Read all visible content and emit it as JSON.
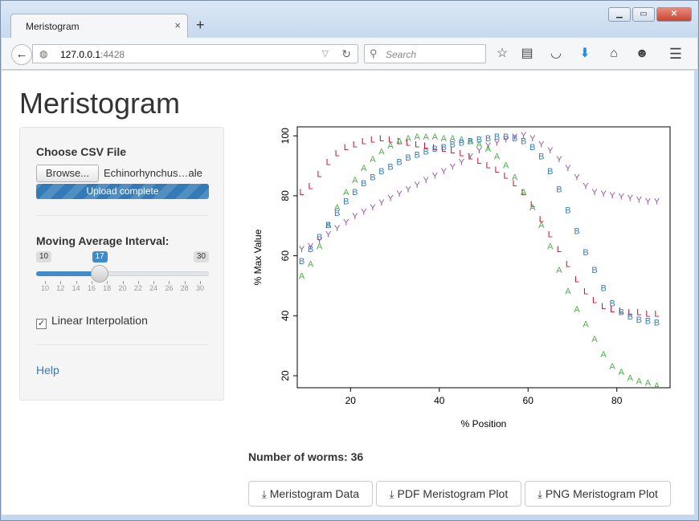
{
  "browser": {
    "tab_title": "Meristogram",
    "tab_close": "×",
    "new_tab": "+",
    "url_host": "127.0.0.1",
    "url_port": ":4428",
    "search_placeholder": "Search"
  },
  "page": {
    "title": "Meristogram",
    "file_input": {
      "label": "Choose CSV File",
      "browse_label": "Browse...",
      "file_name": "Echinorhynchus…ale",
      "progress_text": "Upload complete",
      "progress_fraction": 1.0
    },
    "slider": {
      "label": "Moving Average Interval:",
      "min": 10,
      "max": 30,
      "value": 17,
      "min_label": "10",
      "max_label": "30",
      "value_label": "17",
      "tick_labels": [
        "10",
        "12",
        "14",
        "16",
        "18",
        "20",
        "22",
        "24",
        "26",
        "28",
        "30"
      ]
    },
    "linear_interpolation": {
      "label": "Linear Interpolation",
      "checked": true,
      "mark": "✓"
    },
    "help_label": "Help",
    "worm_count_label": "Number of worms: 36",
    "downloads": [
      {
        "label": "Meristogram Data",
        "icon": "download-icon"
      },
      {
        "label": "PDF Meristogram Plot",
        "icon": "download-icon"
      },
      {
        "label": "PNG Meristogram Plot",
        "icon": "download-icon"
      }
    ]
  },
  "chart_data": {
    "type": "scatter",
    "xlabel": "% Position",
    "ylabel": "% Max Value",
    "xlim": [
      8,
      92
    ],
    "ylim": [
      16,
      103
    ],
    "xticks": [
      20,
      40,
      60,
      80
    ],
    "yticks": [
      20,
      40,
      60,
      80,
      100
    ],
    "series": [
      {
        "name": "",
        "marker": "L",
        "color": "#c8102e",
        "x": [
          9,
          11,
          13,
          15,
          17,
          19,
          21,
          23,
          25,
          27,
          29,
          31,
          33,
          35,
          37,
          39,
          41,
          43,
          45,
          47,
          49,
          51,
          53,
          55,
          57,
          59,
          61,
          63,
          65,
          67,
          69,
          71,
          73,
          75,
          77,
          79,
          81,
          83,
          85,
          87,
          89
        ],
        "values": [
          81,
          83,
          87,
          91,
          94,
          96,
          97,
          98,
          98.5,
          99,
          98.5,
          98,
          97.5,
          97,
          96.5,
          96,
          95.5,
          95,
          94,
          93,
          91.5,
          90,
          88.5,
          86.5,
          84,
          81,
          77,
          72,
          67,
          62,
          57,
          52,
          48,
          45,
          43,
          42,
          41.5,
          41,
          41,
          40.5,
          40.5
        ]
      },
      {
        "name": "",
        "marker": "A",
        "color": "#4daf4a",
        "x": [
          9,
          11,
          13,
          15,
          17,
          19,
          21,
          23,
          25,
          27,
          29,
          31,
          33,
          35,
          37,
          39,
          41,
          43,
          45,
          47,
          49,
          51,
          53,
          55,
          57,
          59,
          61,
          63,
          65,
          67,
          69,
          71,
          73,
          75,
          77,
          79,
          81,
          83,
          85,
          87,
          89
        ],
        "values": [
          53,
          57,
          63,
          70,
          76,
          81,
          85,
          89,
          92,
          94.5,
          96.5,
          98,
          99,
          99.5,
          99.5,
          99.5,
          99,
          99,
          98.5,
          98,
          97,
          95.5,
          93,
          90,
          86,
          81,
          76,
          70,
          63,
          55,
          48,
          42,
          37,
          32,
          27,
          23,
          21,
          19,
          18,
          17.5,
          16.5
        ]
      },
      {
        "name": "",
        "marker": "B",
        "color": "#377eb8",
        "x": [
          9,
          11,
          13,
          15,
          17,
          19,
          21,
          23,
          25,
          27,
          29,
          31,
          33,
          35,
          37,
          39,
          41,
          43,
          45,
          47,
          49,
          51,
          53,
          55,
          57,
          59,
          61,
          63,
          65,
          67,
          69,
          71,
          73,
          75,
          77,
          79,
          81,
          83,
          85,
          87,
          89
        ],
        "values": [
          58,
          62,
          66,
          70,
          74,
          78,
          81,
          84,
          86,
          88,
          89.5,
          91,
          92.5,
          93.5,
          94.5,
          95.5,
          96,
          97,
          97.5,
          98,
          98.5,
          99,
          99.5,
          99.5,
          99,
          98,
          96,
          93,
          88,
          82,
          75,
          68,
          61,
          55,
          49,
          44,
          41,
          39.5,
          38.5,
          38,
          37.5
        ]
      },
      {
        "name": "",
        "marker": "Y",
        "color": "#984ea3",
        "x": [
          9,
          11,
          13,
          15,
          17,
          19,
          21,
          23,
          25,
          27,
          29,
          31,
          33,
          35,
          37,
          39,
          41,
          43,
          45,
          47,
          49,
          51,
          53,
          55,
          57,
          59,
          61,
          63,
          65,
          67,
          69,
          71,
          73,
          75,
          77,
          79,
          81,
          83,
          85,
          87,
          89
        ],
        "values": [
          62,
          63,
          65,
          67,
          69,
          71,
          73,
          74.5,
          76,
          77.5,
          79,
          80.5,
          82,
          83.5,
          85,
          86.5,
          88,
          89.5,
          91,
          93,
          95,
          96.5,
          97.5,
          98.5,
          99.5,
          100,
          99,
          97,
          95,
          92,
          89,
          86,
          83,
          81,
          80.5,
          80,
          79.5,
          79,
          78.5,
          78,
          78
        ]
      }
    ]
  }
}
